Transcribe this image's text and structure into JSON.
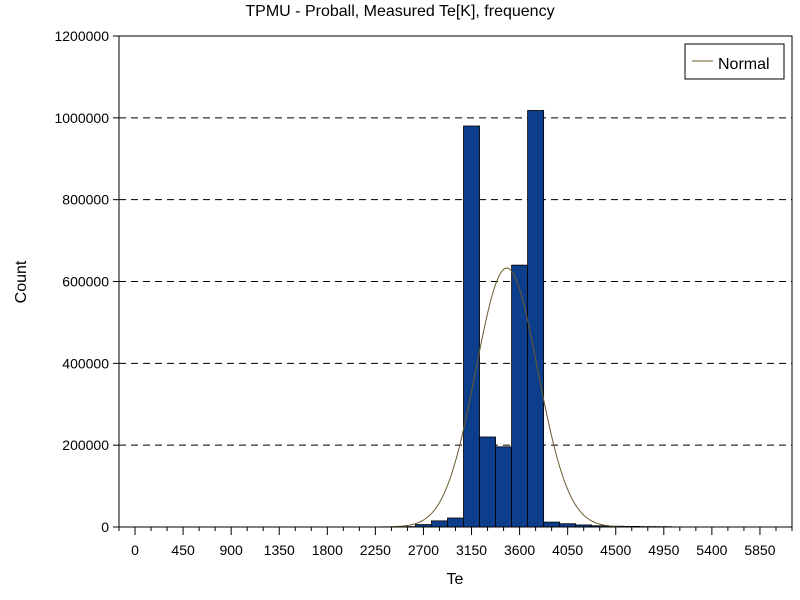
{
  "chart_data": {
    "type": "bar",
    "title": "TPMU - Proball, Measured Te[K], frequency",
    "xlabel": "Te",
    "ylabel": "Count",
    "xlim": [
      -150,
      6150
    ],
    "ylim": [
      0,
      1200000
    ],
    "x_ticks": [
      0,
      450,
      900,
      1350,
      1800,
      2250,
      2700,
      3150,
      3600,
      4050,
      4500,
      4950,
      5400,
      5850
    ],
    "x_tick_labels": [
      "0",
      "450",
      "900",
      "1350",
      "1800",
      "2250",
      "2700",
      "3150",
      "3600",
      "4050",
      "4500",
      "4950",
      "5400",
      "5850"
    ],
    "y_ticks": [
      0,
      200000,
      400000,
      600000,
      800000,
      1000000,
      1200000
    ],
    "y_tick_labels": [
      "0",
      "200000",
      "400000",
      "600000",
      "800000",
      "1000000",
      "1200000"
    ],
    "grid": "horizontal dashed",
    "bar_width": 150,
    "bar_color": "#0d3e8c",
    "bins": [
      {
        "x": 2550,
        "count": 1000
      },
      {
        "x": 2700,
        "count": 6000
      },
      {
        "x": 2850,
        "count": 15000
      },
      {
        "x": 3000,
        "count": 22000
      },
      {
        "x": 3150,
        "count": 980000
      },
      {
        "x": 3300,
        "count": 220000
      },
      {
        "x": 3450,
        "count": 196000
      },
      {
        "x": 3600,
        "count": 640000
      },
      {
        "x": 3750,
        "count": 1018000
      },
      {
        "x": 3900,
        "count": 12000
      },
      {
        "x": 4050,
        "count": 8000
      },
      {
        "x": 4200,
        "count": 5000
      },
      {
        "x": 4350,
        "count": 3000
      },
      {
        "x": 4500,
        "count": 2000
      },
      {
        "x": 4650,
        "count": 1500
      },
      {
        "x": 4800,
        "count": 1000
      },
      {
        "x": 4950,
        "count": 800
      }
    ],
    "normal_curve": {
      "name": "Normal",
      "color": "#6b5a2e",
      "mean": 3480,
      "sd": 290,
      "peak": 633000,
      "x_range": [
        2300,
        4800
      ]
    },
    "legend": {
      "position": "top-right",
      "entries": [
        "Normal"
      ]
    }
  }
}
